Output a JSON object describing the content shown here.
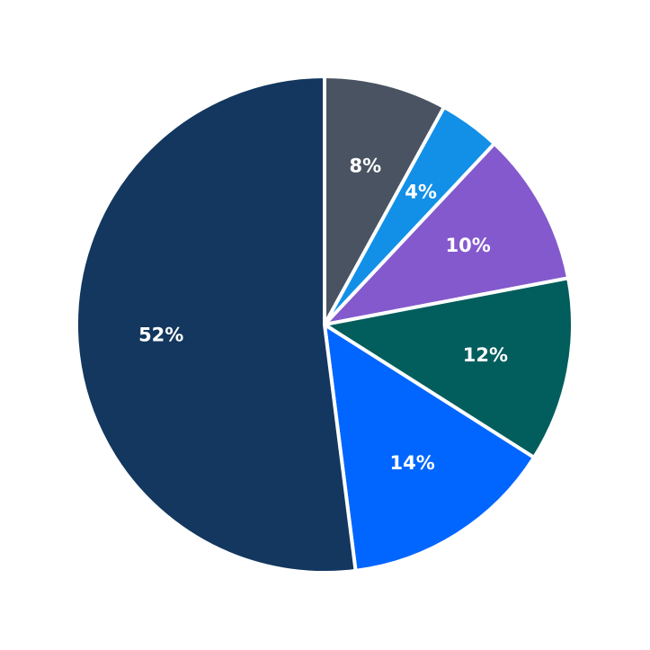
{
  "chart_data": {
    "type": "pie",
    "title": "",
    "start": "12 o'clock",
    "direction": "clockwise",
    "slices": [
      {
        "value": 8,
        "label": "8%",
        "color": "#4a5362"
      },
      {
        "value": 4,
        "label": "4%",
        "color": "#1290e8"
      },
      {
        "value": 10,
        "label": "10%",
        "color": "#8459cd"
      },
      {
        "value": 12,
        "label": "12%",
        "color": "#015e5c"
      },
      {
        "value": 14,
        "label": "14%",
        "color": "#0066ff"
      },
      {
        "value": 52,
        "label": "52%",
        "color": "#13375f"
      }
    ]
  }
}
